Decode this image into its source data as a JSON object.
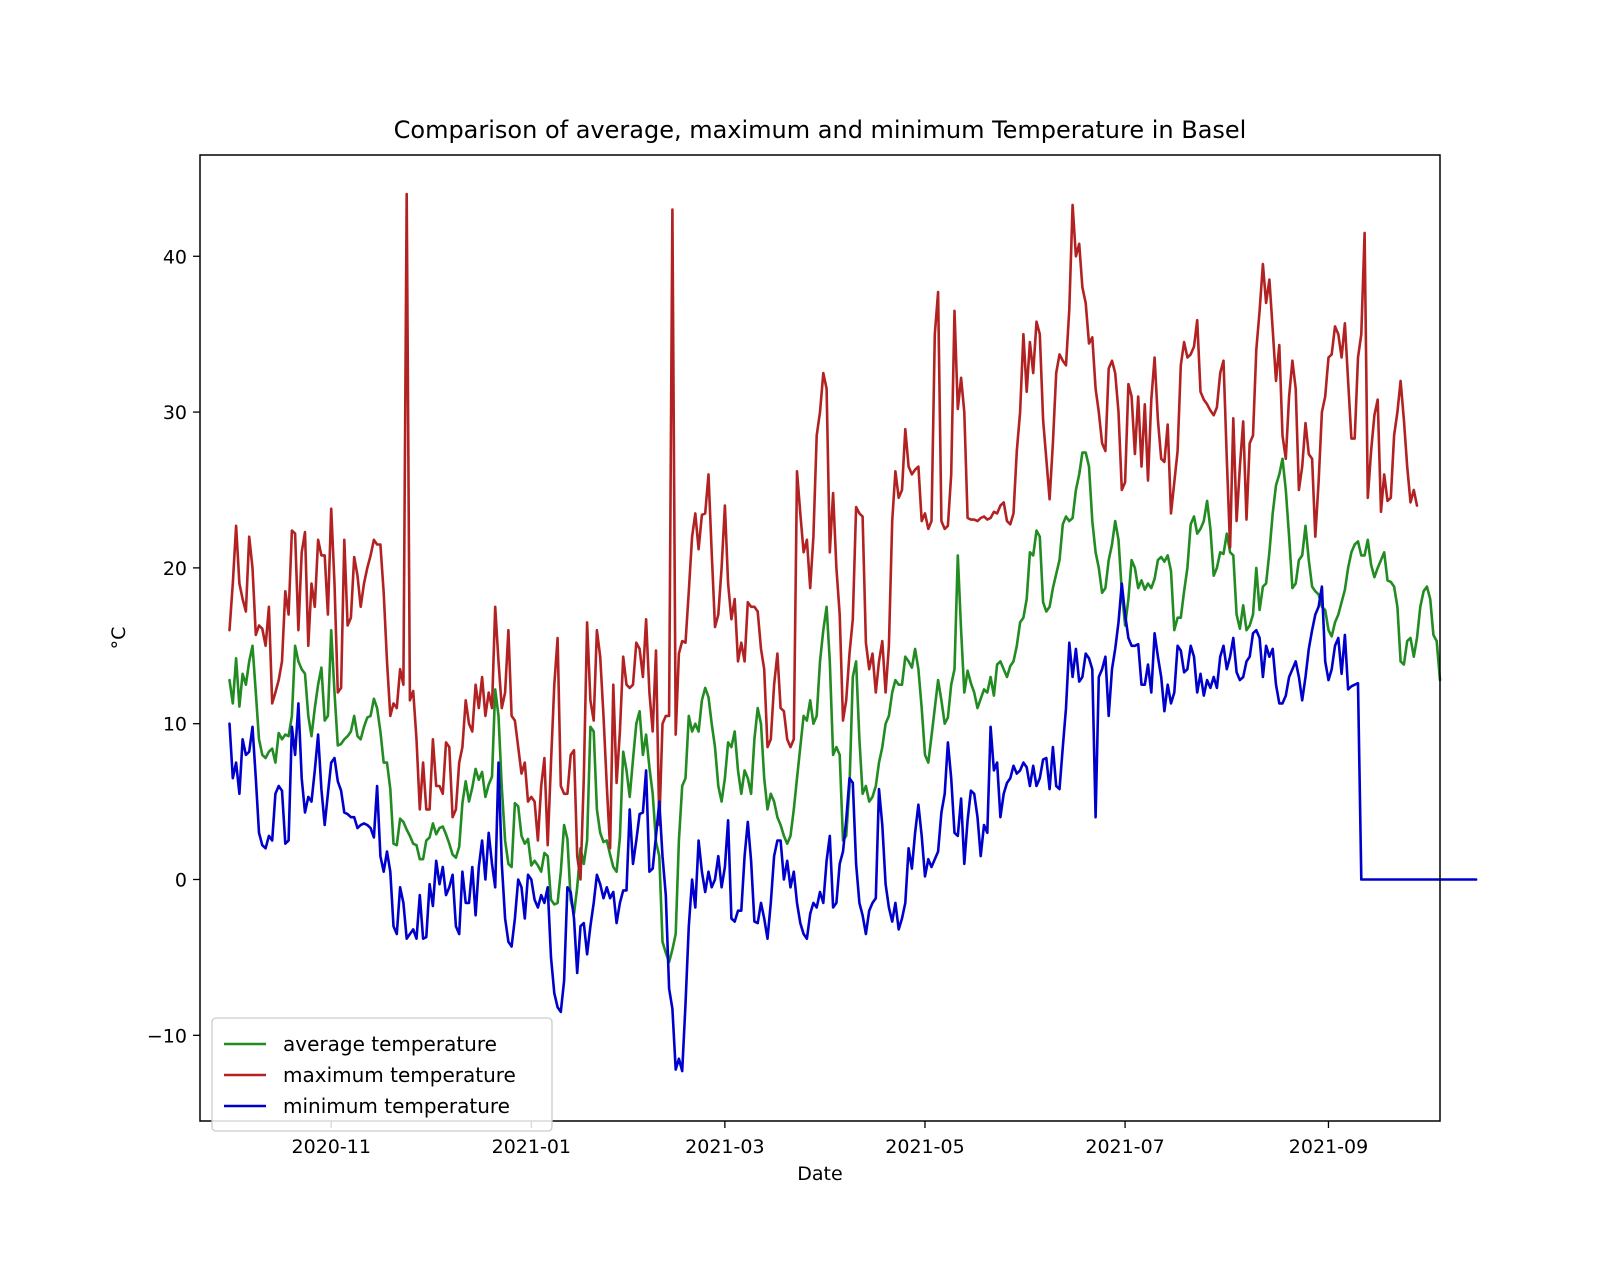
{
  "chart_data": {
    "type": "line",
    "title": "Comparison of average, maximum and minimum Temperature in Basel",
    "xlabel": "Date",
    "ylabel": "°C",
    "xlim": [
      "2020-09-22",
      "2021-10-05"
    ],
    "ylim": [
      -15.5,
      46.5
    ],
    "x_ticks": [
      "2020-11",
      "2021-01",
      "2021-03",
      "2021-05",
      "2021-07",
      "2021-09"
    ],
    "y_ticks": [
      -10,
      0,
      10,
      20,
      30,
      40
    ],
    "grid": false,
    "legend": "lower-left",
    "x_start": "2020-10-01",
    "x_step_days": 1,
    "series": [
      {
        "name": "average temperature",
        "color": "#228b22",
        "values": [
          12.8,
          11.3,
          14.2,
          11.1,
          13.2,
          12.5,
          14,
          15,
          12,
          9,
          8,
          7.8,
          8.2,
          8.4,
          7.5,
          9.4,
          9,
          9.3,
          9.2,
          10.5,
          15,
          14,
          13.5,
          13.2,
          10.5,
          9.2,
          11,
          12.5,
          13.6,
          10.2,
          10.5,
          16,
          12,
          8.6,
          8.7,
          9,
          9.2,
          9.5,
          10.5,
          9.2,
          9,
          9.8,
          10.4,
          10.5,
          11.6,
          11,
          9.5,
          7.5,
          7.5,
          5.8,
          2.3,
          2.2,
          3.9,
          3.7,
          3.2,
          2.8,
          2.3,
          2.2,
          1.3,
          1.3,
          2.5,
          2.7,
          3.6,
          2.9,
          3.3,
          3.4,
          2.9,
          2.3,
          1.6,
          1.4,
          2.1,
          4.9,
          6.3,
          5,
          5.9,
          7.1,
          6.4,
          6.9,
          5.3,
          6.1,
          6.6,
          12.2,
          10.5,
          5.9,
          2.5,
          1,
          0.8,
          4.9,
          4.7,
          2.8,
          2.3,
          2.6,
          0.9,
          1.2,
          0.9,
          0.5,
          1.7,
          1.5,
          -1.3,
          -1.6,
          -1.5,
          0.5,
          3.5,
          2.6,
          -1.3,
          -2.2,
          -0.5,
          2,
          1,
          2.5,
          9.8,
          9.5,
          4.5,
          3,
          2.4,
          2.5,
          1.6,
          0.8,
          0.5,
          2.7,
          8.2,
          7,
          5.3,
          7.7,
          10,
          10.8,
          8,
          9.3,
          7.2,
          5.5,
          2.4,
          1.5,
          -4,
          -4.7,
          -5.3,
          -4.5,
          -3.5,
          2.5,
          6,
          6.5,
          10.5,
          9.5,
          10,
          9.5,
          11.5,
          12.3,
          11.7,
          10,
          8.5,
          6,
          5,
          6.5,
          8.8,
          8.5,
          9.5,
          7,
          5.5,
          7,
          6.5,
          5.5,
          9,
          11,
          10,
          6.5,
          4.5,
          5.5,
          5,
          4,
          3.5,
          2.8,
          2.3,
          2.8,
          4.5,
          6.5,
          8.5,
          10.5,
          10.2,
          11.5,
          10,
          10.5,
          14,
          16,
          17.5,
          14,
          8,
          8.5,
          8,
          2.5,
          2.8,
          6,
          13,
          14,
          9,
          5.5,
          6,
          5,
          5.3,
          6,
          7.5,
          8.5,
          10,
          10.5,
          12,
          12.8,
          12.5,
          12.5,
          14.3,
          14,
          13.6,
          14.8,
          13.5,
          11,
          8,
          7.5,
          9.2,
          11,
          12.8,
          11.5,
          10,
          10.4,
          12.5,
          13.5,
          20.8,
          16,
          12,
          13.4,
          12.6,
          12,
          11,
          11.6,
          12.2,
          12,
          13,
          11.8,
          13.8,
          14,
          13.5,
          13,
          13.7,
          14,
          15,
          16.5,
          16.8,
          18,
          21,
          20.8,
          22.4,
          22,
          17.8,
          17.2,
          17.5,
          18.7,
          19.6,
          20.5,
          22.8,
          23.3,
          23,
          23.2,
          25,
          26,
          27.4,
          27.4,
          26.5,
          23,
          21,
          20,
          18.4,
          18.7,
          20.5,
          21.5,
          23,
          21.8,
          18.5,
          16.3,
          18,
          20.5,
          20,
          18.7,
          19.2,
          18.6,
          19,
          18.7,
          19.3,
          20.5,
          20.7,
          20.4,
          20.8,
          19.8,
          16,
          16.8,
          16.8,
          18.5,
          20,
          22.8,
          23.3,
          22.2,
          22.5,
          23,
          24.3,
          22.5,
          19.5,
          20,
          21,
          20.9,
          22.2,
          21,
          20.8,
          17,
          16.1,
          17.6,
          16,
          16.3,
          17,
          20,
          17.3,
          18.8,
          19,
          21,
          23.5,
          25.3,
          26,
          27,
          25,
          22,
          18.7,
          19,
          20.5,
          20.8,
          22.7,
          20.5,
          18.8,
          18.5,
          18.3,
          17.5,
          17.3,
          16,
          15.6,
          16.5,
          17,
          17.8,
          18.6,
          20,
          21,
          21.5,
          21.7,
          20.8,
          20.8,
          21.8,
          20.2,
          19.4,
          20,
          20.5,
          21,
          19.2,
          19.1,
          18.8,
          17.5,
          14,
          13.8,
          15.3,
          15.5,
          14.3,
          15.5,
          17.5,
          18.5,
          18.8,
          18,
          15.7,
          15.3,
          12.8
        ]
      },
      {
        "name": "maximum temperature",
        "color": "#b22222",
        "values": [
          16,
          19,
          22.7,
          19,
          18,
          17.2,
          22,
          20,
          15.7,
          16.3,
          16.1,
          15,
          17.5,
          11.3,
          12,
          12.8,
          14,
          18.5,
          17,
          22.4,
          22.2,
          16,
          21,
          22.3,
          15,
          19,
          17.5,
          21.8,
          20.8,
          20.8,
          17,
          23.8,
          19,
          12,
          12.3,
          21.8,
          16.3,
          16.8,
          20.7,
          19.5,
          17.5,
          19,
          20,
          20.8,
          21.8,
          21.5,
          21.5,
          18.4,
          14,
          10.5,
          11.3,
          11,
          13.5,
          12.5,
          44,
          11.5,
          12.1,
          9,
          4.5,
          7.5,
          4.5,
          4.5,
          9,
          6,
          6,
          5.5,
          8.8,
          8.5,
          4,
          4.5,
          7.5,
          8.5,
          11.5,
          10,
          9.5,
          12.5,
          11,
          13,
          10.5,
          12,
          11,
          17.5,
          14,
          11,
          12,
          16,
          10.5,
          10.2,
          8.5,
          6.8,
          7.5,
          5,
          5.3,
          5,
          2.5,
          6,
          7.8,
          2.2,
          7.5,
          12.5,
          15.5,
          6,
          5.5,
          5.5,
          8,
          8.3,
          1.5,
          0,
          6.5,
          16.5,
          11.5,
          10.2,
          16,
          14.3,
          10.5,
          6,
          2,
          12.5,
          6.2,
          9.5,
          14.3,
          12.5,
          12.3,
          12.5,
          15.2,
          14.8,
          13,
          16.7,
          12,
          9.5,
          14.7,
          3.5,
          10,
          10.5,
          10.5,
          43,
          9.3,
          14.5,
          15.3,
          15.2,
          18.5,
          22,
          23.5,
          21.2,
          23.4,
          23.5,
          26,
          21,
          16.2,
          17,
          20,
          24,
          19,
          16.7,
          18,
          14,
          15.2,
          14,
          17.8,
          17.5,
          17.5,
          17.2,
          14.8,
          13.5,
          8.5,
          9,
          12.5,
          14.5,
          11,
          10.8,
          9,
          8.5,
          9,
          26.2,
          23.5,
          21,
          21.8,
          18.7,
          22,
          28.5,
          30,
          32.5,
          31.5,
          21,
          24.8,
          20,
          17,
          10.2,
          11.5,
          14.5,
          16.7,
          23.9,
          23.5,
          23.3,
          15.2,
          13.5,
          14.5,
          12,
          14,
          15.3,
          12,
          15,
          23,
          26.2,
          24.5,
          25,
          28.9,
          26.5,
          26,
          26.3,
          26.5,
          23,
          23.5,
          22.5,
          23,
          35,
          37.7,
          23,
          22.5,
          22.7,
          26,
          36.5,
          30.2,
          32.2,
          30,
          23.2,
          23.1,
          23.1,
          23,
          23.2,
          23.3,
          23.1,
          23.2,
          23.6,
          23.5,
          24,
          24.2,
          23,
          22.8,
          23.5,
          27.5,
          30,
          35,
          31.3,
          34.5,
          32.5,
          35.8,
          35,
          29.5,
          27,
          24.4,
          28,
          32.5,
          33.7,
          33.3,
          33,
          36.6,
          43.3,
          40,
          40.8,
          38,
          37,
          34.4,
          34.8,
          31.5,
          30,
          28,
          27.5,
          32.8,
          33.3,
          32.5,
          30,
          25,
          25.5,
          31.8,
          31,
          27.3,
          31,
          26.5,
          30.5,
          25.6,
          30.8,
          33.5,
          29.5,
          27,
          26.8,
          29.2,
          23.5,
          25.5,
          27.5,
          33,
          34.5,
          33.5,
          33.7,
          34.2,
          35.9,
          31.3,
          30.8,
          30.5,
          30.1,
          29.8,
          30.3,
          32.5,
          33.3,
          27,
          21.3,
          29.6,
          23,
          26.5,
          29.4,
          23.1,
          28,
          28.5,
          34,
          36.5,
          39.5,
          37,
          38.5,
          35.3,
          32,
          34.3,
          28.5,
          27,
          31,
          33.3,
          31.5,
          25,
          26.5,
          29.3,
          27.3,
          27,
          22,
          25.5,
          30,
          31,
          33.5,
          33.7,
          35.5,
          35,
          33.5,
          35.7,
          32,
          28.3,
          28.3,
          33.5,
          35,
          41.5,
          24.5,
          27.5,
          29.8,
          30.8,
          23.6,
          26,
          24.3,
          24.5,
          28.5,
          30,
          32,
          29.5,
          26.5,
          24.2,
          25,
          24
        ]
      },
      {
        "name": "minimum temperature",
        "color": "#0000cd",
        "values": [
          10,
          6.5,
          7.5,
          5.5,
          9,
          8,
          8.2,
          9.8,
          6.5,
          3,
          2.2,
          2,
          2.8,
          2.5,
          5.5,
          6,
          5.7,
          2.3,
          2.5,
          9.8,
          8,
          11.3,
          6.5,
          4.3,
          5.3,
          5,
          7,
          9.3,
          5.8,
          3.5,
          5.5,
          7.5,
          7.8,
          6.3,
          5.7,
          4.3,
          4.2,
          4,
          4,
          3.3,
          3.5,
          3.6,
          3.5,
          3.3,
          2.7,
          6,
          1.5,
          0.5,
          1.8,
          0.5,
          -3,
          -3.5,
          -0.5,
          -1.5,
          -3.8,
          -3.5,
          -3.2,
          -3.8,
          -1,
          -3.8,
          -3.7,
          -0.3,
          -1.7,
          1.2,
          -0.3,
          0.8,
          -1,
          -0.5,
          0.3,
          -3,
          -3.5,
          0.5,
          -1.5,
          -1.5,
          0.8,
          -2.3,
          0.8,
          2.5,
          0,
          3,
          1,
          -0.5,
          7.5,
          1,
          -2.5,
          -4,
          -4.3,
          -2.5,
          0,
          -0.5,
          -2.5,
          0.3,
          0,
          -1.3,
          -1.8,
          -1,
          -1.5,
          -0.5,
          -5,
          -7.3,
          -8.2,
          -8.5,
          -6.5,
          -0.5,
          -0.8,
          -2.5,
          -6,
          -3,
          -2.8,
          -4.8,
          -3,
          -1.5,
          0.3,
          -0.3,
          -1.2,
          -0.5,
          -1.2,
          -0.8,
          -2.8,
          -1.5,
          -0.7,
          -0.7,
          4.5,
          1,
          2.5,
          4.2,
          4.3,
          7,
          0.5,
          0.7,
          2.8,
          5,
          1.5,
          -1,
          -7,
          -8.3,
          -12.2,
          -11.5,
          -12.3,
          -8,
          -3,
          0,
          -1.8,
          2.5,
          0.5,
          -0.8,
          0.5,
          -0.5,
          0,
          1.5,
          -0.5,
          0.8,
          3.8,
          -2.5,
          -2.7,
          -2,
          -2,
          1.5,
          3.7,
          1.2,
          -2.7,
          -2.8,
          -1.5,
          -2.5,
          -3.8,
          -1.5,
          1.5,
          2.5,
          2.5,
          0,
          1.2,
          -0.5,
          0.5,
          -1.5,
          -2.8,
          -3.5,
          -3.8,
          -2.2,
          -1.5,
          -1.8,
          -0.8,
          -1.5,
          1.2,
          2.8,
          -1.8,
          -1.5,
          1,
          1.8,
          3.8,
          6.5,
          6.2,
          1,
          -1.5,
          -2.3,
          -3.5,
          -2,
          -1.5,
          -1.2,
          5.8,
          3.5,
          -0.3,
          -1.8,
          -2.7,
          -1.5,
          -3.2,
          -2.5,
          -1.5,
          2,
          0.7,
          3,
          4.8,
          2.8,
          0.2,
          1.3,
          0.8,
          1.3,
          1.8,
          4.3,
          5.5,
          8.8,
          6.5,
          3,
          2.8,
          5.2,
          1,
          3.8,
          5.7,
          5.5,
          4,
          1.5,
          3.5,
          3,
          9.8,
          7,
          7.5,
          4,
          5.5,
          6.2,
          6.5,
          7.3,
          6.8,
          7,
          7.5,
          7.2,
          6,
          7.3,
          6,
          6.5,
          7.7,
          7.8,
          5.8,
          8.5,
          6,
          5.8,
          8.5,
          11,
          15.2,
          13,
          14.8,
          12.7,
          13,
          14.5,
          14.2,
          13.5,
          4,
          13,
          13.5,
          14.3,
          10.5,
          13.5,
          14.8,
          16.5,
          19,
          17,
          15.5,
          15,
          15,
          15.1,
          12.5,
          12.5,
          13.8,
          12,
          15.8,
          14.3,
          13,
          10.8,
          12.5,
          11.3,
          12,
          15,
          14.7,
          13.3,
          13.5,
          15,
          14.3,
          12,
          13.2,
          11.8,
          12.8,
          12.3,
          13,
          12.3,
          14.3,
          15,
          13.5,
          14.3,
          15.5,
          13.3,
          12.8,
          13,
          14,
          14.3,
          15.8,
          16,
          15.5,
          13,
          15,
          14.3,
          14.8,
          12.5,
          11.3,
          11.3,
          11.8,
          13,
          13.5,
          14,
          13,
          11.5,
          13,
          14.8,
          16,
          17,
          17.5,
          18.8,
          14,
          12.8,
          13.5,
          15,
          15.5,
          13.2,
          15.7,
          12.2,
          12.4,
          12.5,
          12.6,
          0,
          0,
          0,
          0,
          0,
          0,
          0,
          0,
          0,
          0,
          0,
          0,
          0,
          0,
          0,
          0,
          0,
          0,
          0,
          0,
          0,
          0,
          0,
          0,
          0,
          0,
          0,
          0,
          0,
          0,
          0,
          0,
          0,
          0,
          0,
          0
        ]
      }
    ]
  }
}
